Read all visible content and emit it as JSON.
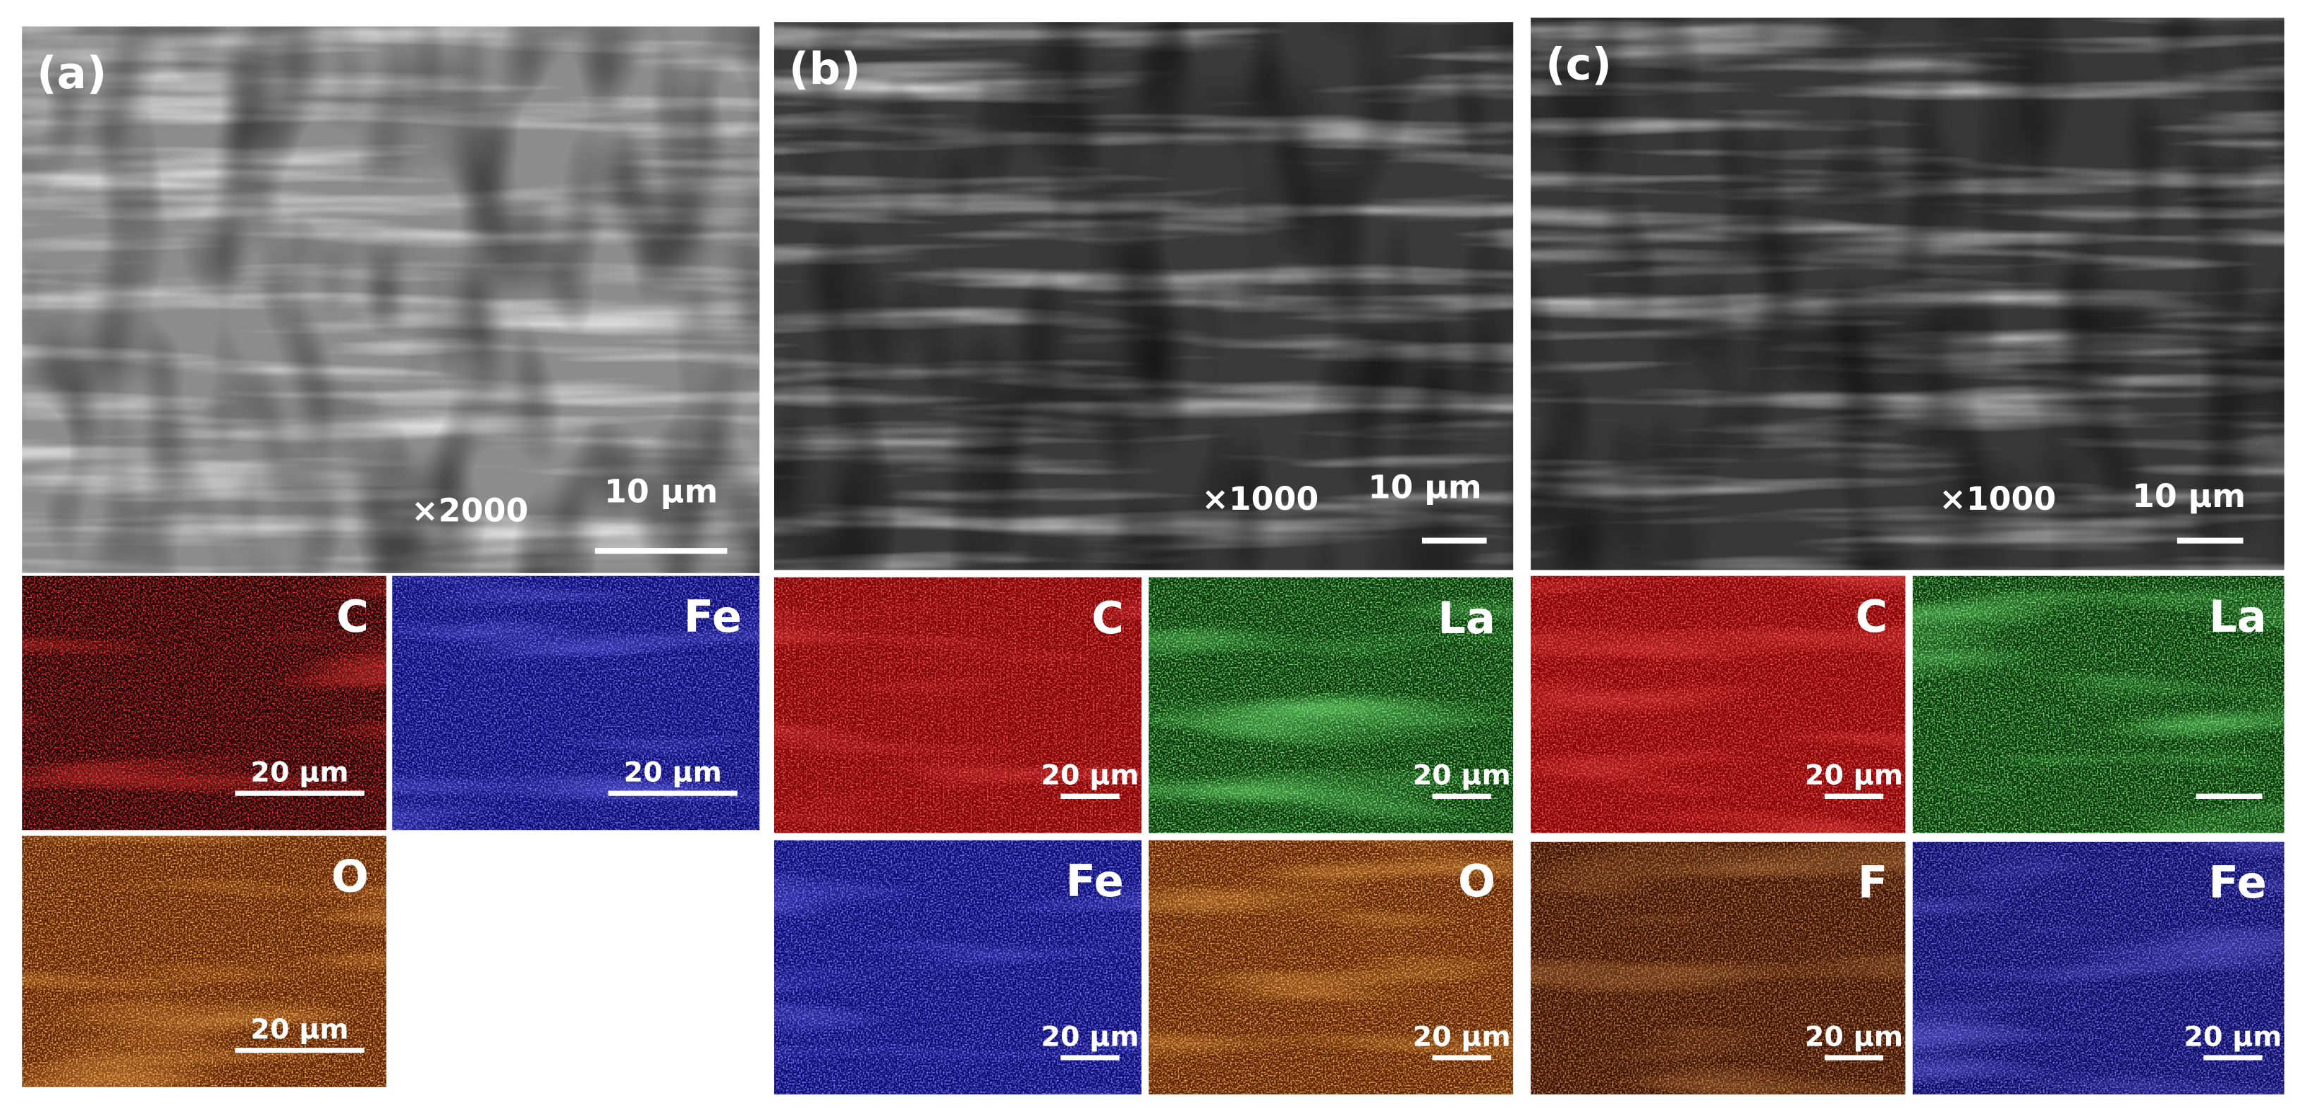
{
  "panels": [
    {
      "label": "(a)",
      "magnification": "×2000",
      "scale_bar": "10 µm",
      "maps": [
        {
          "element": "C",
          "scale_bar": "20 µm"
        },
        {
          "element": "Fe",
          "scale_bar": "20 µm"
        },
        {
          "element": "O",
          "scale_bar": "20 µm"
        }
      ]
    },
    {
      "label": "(b)",
      "magnification": "×1000",
      "scale_bar": "10 µm",
      "maps": [
        {
          "element": "C",
          "scale_bar": "20 µm"
        },
        {
          "element": "La",
          "scale_bar": "20 µm"
        },
        {
          "element": "Fe",
          "scale_bar": "20 µm"
        },
        {
          "element": "O",
          "scale_bar": "20 µm"
        }
      ]
    },
    {
      "label": "(c)",
      "magnification": "×1000",
      "scale_bar": "10 µm",
      "maps": [
        {
          "element": "C",
          "scale_bar": "20 µm"
        },
        {
          "element": "La"
        },
        {
          "element": "F",
          "scale_bar": "20 µm"
        },
        {
          "element": "Fe",
          "scale_bar": "20 µm"
        }
      ]
    }
  ]
}
